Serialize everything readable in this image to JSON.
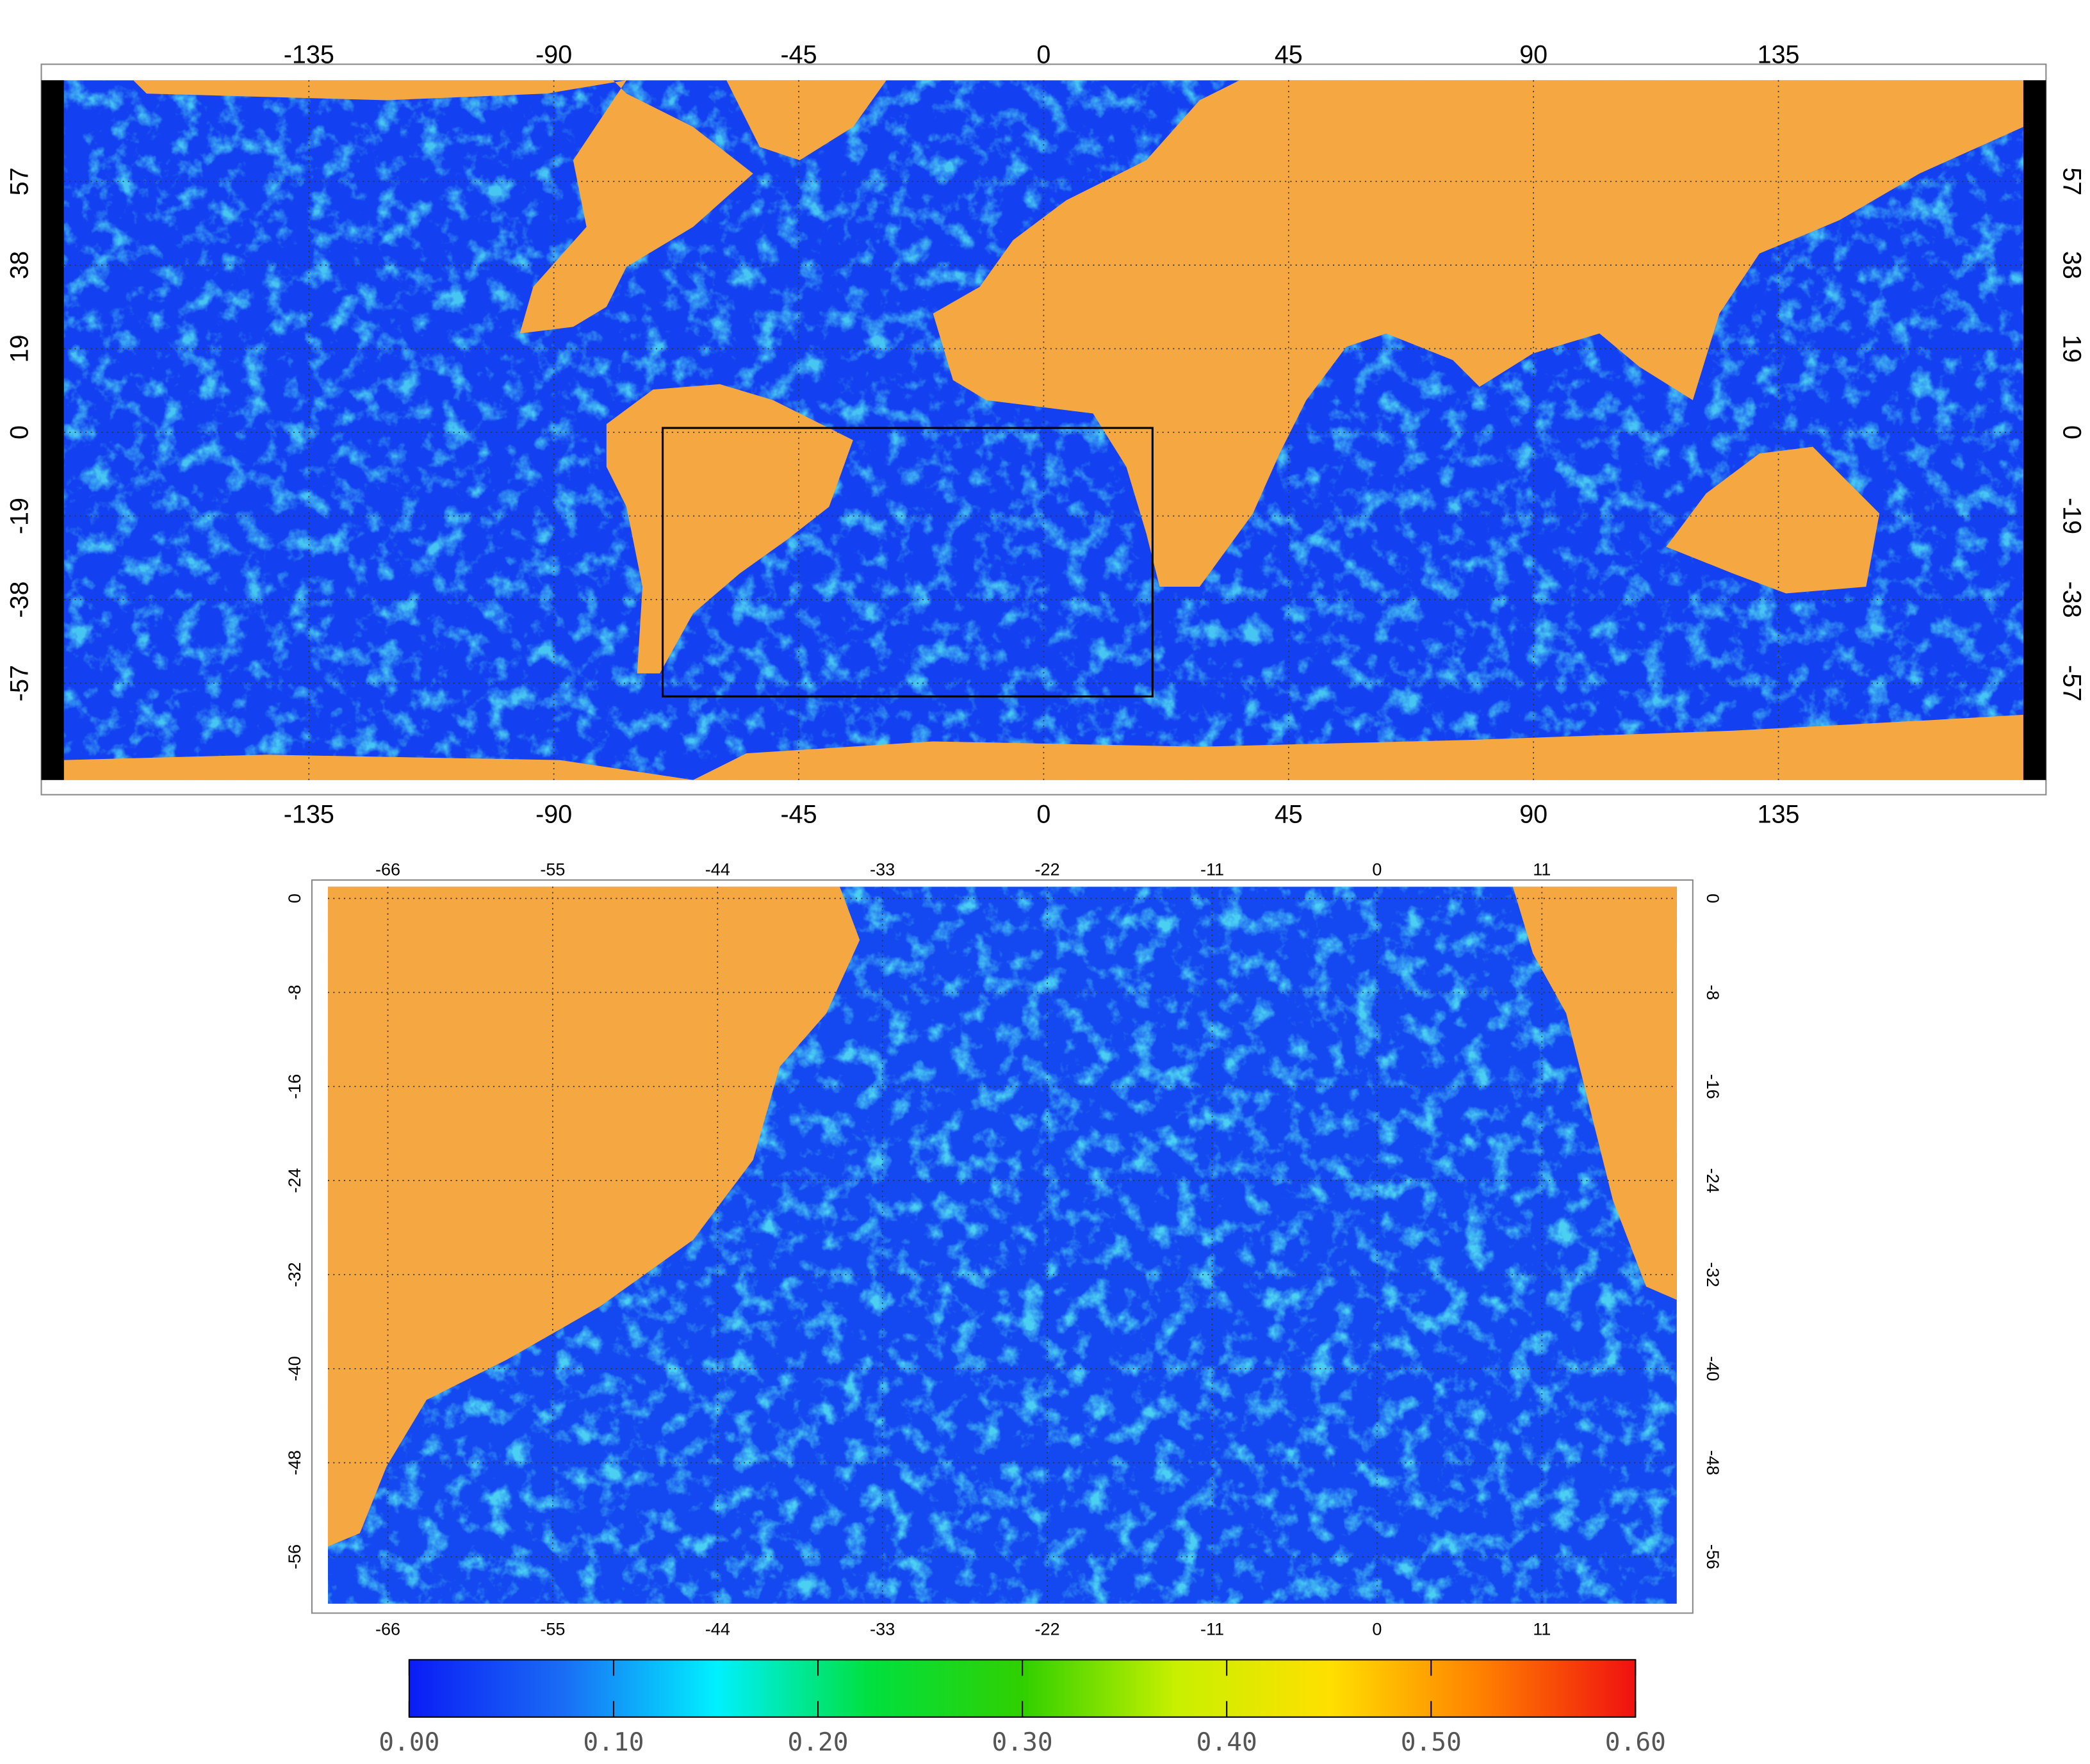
{
  "global_map": {
    "xlim": [
      -180,
      180
    ],
    "ylim": [
      -79,
      80
    ],
    "xticks": [
      -135,
      -90,
      -45,
      0,
      45,
      90,
      135
    ],
    "yticks": [
      57,
      38,
      19,
      0,
      -19,
      -38,
      -57
    ]
  },
  "inset_map": {
    "xlim": [
      -70,
      20
    ],
    "ylim": [
      -60,
      1
    ],
    "xticks": [
      -66,
      -55,
      -44,
      -33,
      -22,
      -11,
      0,
      11
    ],
    "yticks": [
      0,
      -8,
      -16,
      -24,
      -32,
      -40,
      -48,
      -56
    ]
  },
  "colorbar": {
    "lim": [
      0,
      0.6
    ],
    "ticks": [
      {
        "value": 0,
        "label": "0.00"
      },
      {
        "value": 0.1,
        "label": "0.10"
      },
      {
        "value": 0.2,
        "label": "0.20"
      },
      {
        "value": 0.3,
        "label": "0.30"
      },
      {
        "value": 0.4,
        "label": "0.40"
      },
      {
        "value": 0.5,
        "label": "0.50"
      },
      {
        "value": 0.6,
        "label": "0.60"
      }
    ],
    "colors": [
      "#0a1cf5",
      "#1a6cf5",
      "#00f0ff",
      "#00e040",
      "#30d000",
      "#c8f000",
      "#ffe000",
      "#ff8000",
      "#f01010"
    ]
  }
}
